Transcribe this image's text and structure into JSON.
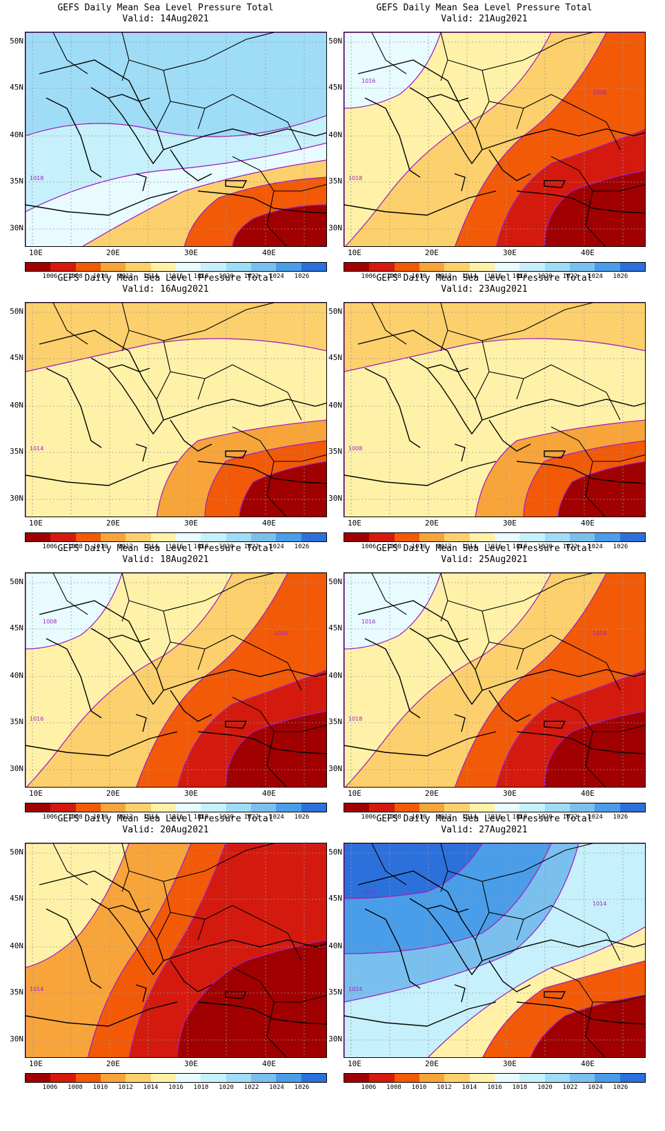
{
  "colors": [
    "#a00000",
    "#d41a0e",
    "#f25a08",
    "#f7a43a",
    "#fcd06c",
    "#fff2a8",
    "#e8fbff",
    "#c6f0fb",
    "#9fdcf6",
    "#7ac0ef",
    "#4a9de8",
    "#2c70db"
  ],
  "colorbar_labels": [
    "1006",
    "1008",
    "1010",
    "1012",
    "1014",
    "1016",
    "1018",
    "1020",
    "1022",
    "1024",
    "1026"
  ],
  "lat_labels": [
    "50N",
    "45N",
    "40N",
    "35N",
    "30N"
  ],
  "lon_labels": [
    "10E",
    "20E",
    "30E",
    "40E"
  ],
  "panels": [
    {
      "title": "GEFS Daily Mean Sea Level Pressure Total",
      "valid": "Valid: 14Aug2021",
      "regime": "high",
      "contour_labels": [
        "1018"
      ]
    },
    {
      "title": "GEFS Daily Mean Sea Level Pressure Total",
      "valid": "Valid: 21Aug2021",
      "regime": "low",
      "contour_labels": [
        "1018",
        "1016",
        "1008"
      ]
    },
    {
      "title": "GEFS Daily Mean Sea Level Pressure Total",
      "valid": "Valid: 16Aug2021",
      "regime": "mid",
      "contour_labels": [
        "1014"
      ]
    },
    {
      "title": "GEFS Daily Mean Sea Level Pressure Total",
      "valid": "Valid: 23Aug2021",
      "regime": "mid",
      "contour_labels": [
        "1008"
      ]
    },
    {
      "title": "GEFS Daily Mean Sea Level Pressure Total",
      "valid": "Valid: 18Aug2021",
      "regime": "low",
      "contour_labels": [
        "1016",
        "1008",
        "1014"
      ]
    },
    {
      "title": "GEFS Daily Mean Sea Level Pressure Total",
      "valid": "Valid: 25Aug2021",
      "regime": "low",
      "contour_labels": [
        "1018",
        "1016",
        "1016"
      ]
    },
    {
      "title": "GEFS Daily Mean Sea Level Pressure Total",
      "valid": "Valid: 20Aug2021",
      "regime": "vlow",
      "contour_labels": [
        "1014"
      ]
    },
    {
      "title": "GEFS Daily Mean Sea Level Pressure Total",
      "valid": "Valid: 27Aug2021",
      "regime": "vhigh",
      "contour_labels": [
        "1024",
        "1020",
        "1014"
      ]
    }
  ]
}
